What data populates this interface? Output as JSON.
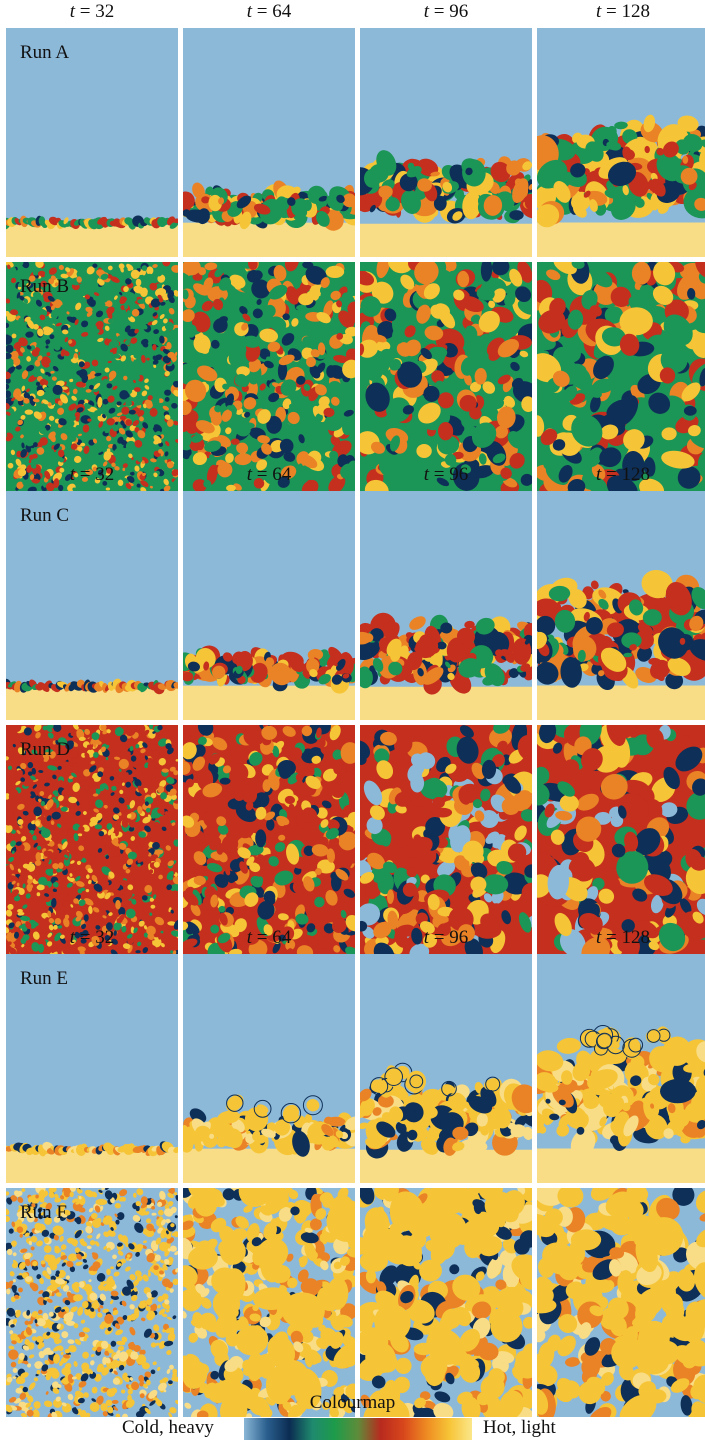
{
  "time_labels": [
    {
      "var": "t",
      "value": "= 32"
    },
    {
      "var": "t",
      "value": "= 64"
    },
    {
      "var": "t",
      "value": "= 96"
    },
    {
      "var": "t",
      "value": "= 128"
    }
  ],
  "groups": [
    {
      "runs": [
        {
          "label": "Run A",
          "type": "front"
        },
        {
          "label": "Run B",
          "type": "mix"
        }
      ]
    },
    {
      "runs": [
        {
          "label": "Run C",
          "type": "front"
        },
        {
          "label": "Run D",
          "type": "mix"
        }
      ]
    },
    {
      "runs": [
        {
          "label": "Run E",
          "type": "front"
        },
        {
          "label": "Run F",
          "type": "mix"
        }
      ]
    }
  ],
  "legend": {
    "title": "Colourmap",
    "left_label": "Cold, heavy",
    "right_label": "Hot, light",
    "colors": [
      "#8ab6d6",
      "#2a5f8e",
      "#0b2c52",
      "#1f8a6e",
      "#1e9b4a",
      "#5e8c3a",
      "#b82a1e",
      "#d8471c",
      "#ee8a22",
      "#f7c436",
      "#fbe68a"
    ]
  },
  "colors": {
    "cold": "#8db9d9",
    "hot": "#f8dd86",
    "navy": "#0e2f57",
    "green": "#1c9656",
    "red": "#c42f1e",
    "orange": "#ea8226",
    "yellow": "#f6c537"
  }
}
